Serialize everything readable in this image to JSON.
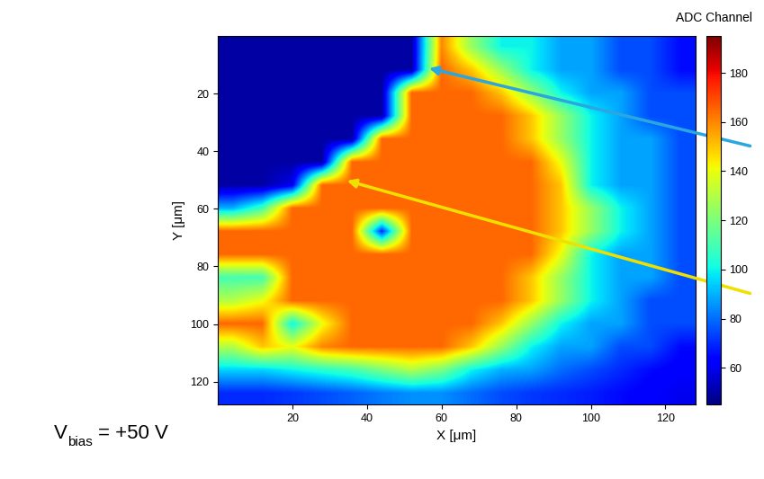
{
  "chart_data": {
    "type": "heatmap",
    "x_label": "X [μm]",
    "y_label": "Y [μm]",
    "xlim": [
      0,
      128
    ],
    "ylim": [
      128,
      0
    ],
    "xticks": [
      20,
      40,
      60,
      80,
      100,
      120
    ],
    "yticks": [
      20,
      40,
      60,
      80,
      100,
      120
    ],
    "cells": [
      [
        50,
        50,
        50,
        50,
        50,
        50,
        50,
        160,
        125,
        100,
        100,
        88,
        88,
        75,
        75,
        65
      ],
      [
        50,
        50,
        50,
        50,
        50,
        50,
        50,
        165,
        150,
        125,
        100,
        88,
        88,
        75,
        75,
        65
      ],
      [
        50,
        50,
        50,
        50,
        50,
        50,
        165,
        165,
        165,
        150,
        125,
        100,
        88,
        88,
        75,
        75
      ],
      [
        50,
        50,
        50,
        50,
        50,
        50,
        165,
        165,
        165,
        165,
        150,
        125,
        100,
        88,
        75,
        75
      ],
      [
        50,
        50,
        50,
        50,
        50,
        165,
        165,
        165,
        165,
        165,
        150,
        125,
        100,
        88,
        88,
        75
      ],
      [
        50,
        50,
        50,
        50,
        165,
        165,
        165,
        165,
        165,
        165,
        165,
        140,
        100,
        88,
        88,
        75
      ],
      [
        50,
        50,
        60,
        165,
        165,
        165,
        165,
        165,
        165,
        165,
        165,
        150,
        100,
        88,
        88,
        75
      ],
      [
        90,
        110,
        165,
        165,
        165,
        165,
        165,
        165,
        165,
        165,
        165,
        150,
        125,
        100,
        88,
        75
      ],
      [
        165,
        165,
        165,
        165,
        165,
        70,
        165,
        165,
        165,
        165,
        165,
        150,
        125,
        100,
        88,
        75
      ],
      [
        165,
        165,
        165,
        165,
        165,
        165,
        165,
        165,
        165,
        165,
        165,
        140,
        100,
        88,
        88,
        75
      ],
      [
        110,
        110,
        165,
        165,
        165,
        165,
        165,
        165,
        165,
        165,
        150,
        125,
        100,
        88,
        88,
        75
      ],
      [
        130,
        140,
        165,
        165,
        165,
        165,
        165,
        165,
        165,
        165,
        150,
        125,
        100,
        88,
        75,
        75
      ],
      [
        165,
        165,
        100,
        140,
        165,
        165,
        165,
        165,
        165,
        150,
        125,
        100,
        88,
        88,
        75,
        75
      ],
      [
        130,
        150,
        140,
        160,
        165,
        165,
        165,
        165,
        150,
        125,
        100,
        88,
        88,
        75,
        75,
        65
      ],
      [
        95,
        95,
        100,
        105,
        110,
        120,
        130,
        120,
        100,
        90,
        88,
        80,
        75,
        70,
        65,
        62
      ],
      [
        70,
        70,
        72,
        75,
        78,
        82,
        85,
        85,
        80,
        75,
        72,
        70,
        68,
        65,
        62,
        60
      ]
    ],
    "color_range": [
      45,
      195
    ],
    "color_ticks": [
      60,
      80,
      100,
      120,
      140,
      160,
      180
    ],
    "color_label": "ADC Channel",
    "annotation": {
      "symbol": "V",
      "subscript": "bias",
      "text": "= +50 V"
    }
  }
}
